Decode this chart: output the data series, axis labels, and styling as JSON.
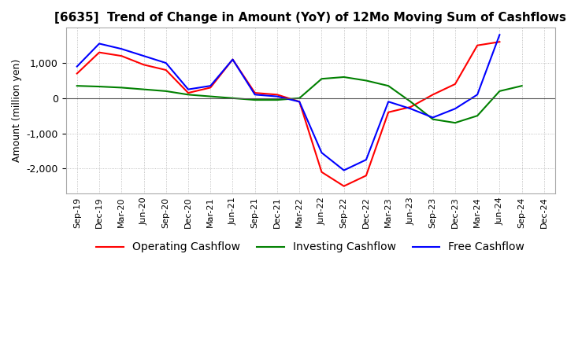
{
  "title": "[6635]  Trend of Change in Amount (YoY) of 12Mo Moving Sum of Cashflows",
  "ylabel": "Amount (million yen)",
  "x_labels": [
    "Sep-19",
    "Dec-19",
    "Mar-20",
    "Jun-20",
    "Sep-20",
    "Dec-20",
    "Mar-21",
    "Jun-21",
    "Sep-21",
    "Dec-21",
    "Mar-22",
    "Jun-22",
    "Sep-22",
    "Dec-22",
    "Mar-23",
    "Jun-23",
    "Sep-23",
    "Dec-23",
    "Mar-24",
    "Jun-24",
    "Sep-24",
    "Dec-24"
  ],
  "operating": [
    700,
    1300,
    1200,
    950,
    800,
    150,
    300,
    1100,
    150,
    100,
    -100,
    -2100,
    -2500,
    -2200,
    -400,
    -250,
    100,
    400,
    1500,
    1600,
    null,
    null
  ],
  "investing": [
    350,
    330,
    300,
    250,
    200,
    100,
    50,
    0,
    -50,
    -50,
    0,
    550,
    600,
    500,
    350,
    -100,
    -600,
    -700,
    -500,
    200,
    350,
    null
  ],
  "free": [
    900,
    1550,
    1400,
    1200,
    1000,
    250,
    350,
    1100,
    100,
    50,
    -100,
    -1550,
    -2050,
    -1750,
    -100,
    -300,
    -550,
    -300,
    100,
    1800,
    null,
    null
  ],
  "ylim": [
    -2700,
    2000
  ],
  "yticks": [
    -2000,
    -1000,
    0,
    1000
  ],
  "operating_color": "#ff0000",
  "investing_color": "#008000",
  "free_color": "#0000ff",
  "bg_color": "#ffffff",
  "grid_color": "#b0b0b0",
  "title_fontsize": 11,
  "axis_fontsize": 9,
  "legend_fontsize": 10
}
